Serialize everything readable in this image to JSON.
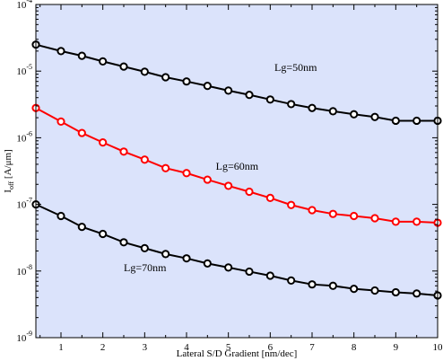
{
  "chart_data": {
    "type": "line",
    "xlabel": "Lateral S/D Gradient [nm/dec]",
    "ylabel_main": "I",
    "ylabel_sub": "off",
    "ylabel_unit": " [A/μm]",
    "xlim": [
      0.4,
      10
    ],
    "ylim": [
      1e-09,
      0.0001
    ],
    "yscale": "log",
    "x_ticks": [
      "1",
      "2",
      "3",
      "4",
      "5",
      "6",
      "7",
      "8",
      "9",
      "10"
    ],
    "y_ticks": [
      {
        "base": "10",
        "exp": "-9"
      },
      {
        "base": "10",
        "exp": "-8"
      },
      {
        "base": "10",
        "exp": "-7"
      },
      {
        "base": "10",
        "exp": "-6"
      },
      {
        "base": "10",
        "exp": "-5"
      },
      {
        "base": "10",
        "exp": "-4"
      }
    ],
    "grid": false,
    "background_color": "#dbe3fb",
    "x": [
      0.4,
      1,
      1.5,
      2,
      2.5,
      3,
      3.5,
      4,
      4.5,
      5,
      5.5,
      6,
      6.5,
      7,
      7.5,
      8,
      8.5,
      9,
      9.5,
      10
    ],
    "series": [
      {
        "color": "#000000",
        "values": [
          2.5e-05,
          2e-05,
          1.7e-05,
          1.4e-05,
          1.17e-05,
          9.8e-06,
          8.1e-06,
          7e-06,
          6e-06,
          5.1e-06,
          4.4e-06,
          3.75e-06,
          3.2e-06,
          2.8e-06,
          2.5e-06,
          2.25e-06,
          2.05e-06,
          1.8e-06,
          1.8e-06,
          1.8e-06
        ]
      },
      {
        "color": "#ff0000",
        "values": [
          2.8e-06,
          1.75e-06,
          1.18e-06,
          8.5e-07,
          6.2e-07,
          4.7e-07,
          3.5e-07,
          2.95e-07,
          2.35e-07,
          1.9e-07,
          1.55e-07,
          1.25e-07,
          9.8e-08,
          8.2e-08,
          7.2e-08,
          6.7e-08,
          6.2e-08,
          5.5e-08,
          5.5e-08,
          5.3e-08
        ]
      },
      {
        "color": "#000000",
        "values": [
          1e-07,
          6.7e-08,
          4.6e-08,
          3.6e-08,
          2.7e-08,
          2.2e-08,
          1.8e-08,
          1.55e-08,
          1.3e-08,
          1.13e-08,
          9.8e-09,
          8.5e-09,
          7.2e-09,
          6.3e-09,
          6e-09,
          5.4e-09,
          5.1e-09,
          4.8e-09,
          4.6e-09,
          4.3e-09
        ]
      }
    ],
    "annotations": [
      {
        "text": "Lg=50nm",
        "x": 6.1,
        "y": 1e-05
      },
      {
        "text": "Lg=60nm",
        "x": 4.7,
        "y": 3.3e-07
      },
      {
        "text": "Lg=70nm",
        "x": 2.5,
        "y": 1e-08
      }
    ]
  }
}
